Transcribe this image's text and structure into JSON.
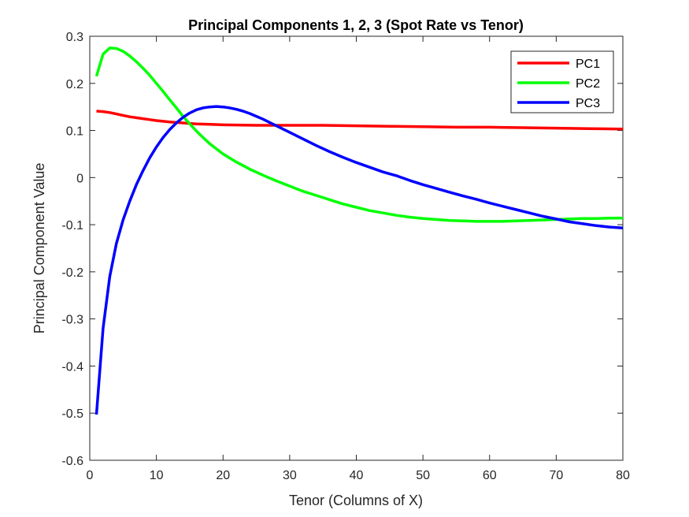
{
  "chart_data": {
    "type": "line",
    "title": "Principal Components 1, 2, 3 (Spot Rate vs Tenor)",
    "xlabel": "Tenor (Columns of X)",
    "ylabel": "Principal Component Value",
    "xlim": [
      0,
      80
    ],
    "ylim": [
      -0.6,
      0.3
    ],
    "xticks": [
      0,
      10,
      20,
      30,
      40,
      50,
      60,
      70,
      80
    ],
    "yticks": [
      0.3,
      0.2,
      0.1,
      0,
      -0.1,
      -0.2,
      -0.3,
      -0.4,
      -0.5,
      -0.6
    ],
    "xtick_labels": [
      "0",
      "10",
      "20",
      "30",
      "40",
      "50",
      "60",
      "70",
      "80"
    ],
    "ytick_labels": [
      "0.3",
      "0.2",
      "0.1",
      "0",
      "-0.1",
      "-0.2",
      "-0.3",
      "-0.4",
      "-0.5",
      "-0.6"
    ],
    "grid": false,
    "legend_position": "top-right",
    "series": [
      {
        "name": "PC1",
        "color": "#ff0000",
        "points": [
          [
            1,
            0.141
          ],
          [
            2,
            0.14
          ],
          [
            3,
            0.138
          ],
          [
            4,
            0.135
          ],
          [
            5,
            0.132
          ],
          [
            6,
            0.129
          ],
          [
            7,
            0.127
          ],
          [
            8,
            0.125
          ],
          [
            9,
            0.123
          ],
          [
            10,
            0.121
          ],
          [
            12,
            0.118
          ],
          [
            14,
            0.116
          ],
          [
            16,
            0.114
          ],
          [
            18,
            0.113
          ],
          [
            20,
            0.112
          ],
          [
            25,
            0.111
          ],
          [
            30,
            0.111
          ],
          [
            35,
            0.111
          ],
          [
            40,
            0.11
          ],
          [
            45,
            0.109
          ],
          [
            50,
            0.108
          ],
          [
            55,
            0.107
          ],
          [
            60,
            0.107
          ],
          [
            65,
            0.106
          ],
          [
            70,
            0.105
          ],
          [
            75,
            0.104
          ],
          [
            80,
            0.103
          ]
        ]
      },
      {
        "name": "PC2",
        "color": "#00ff00",
        "points": [
          [
            1,
            0.215
          ],
          [
            2,
            0.262
          ],
          [
            3,
            0.275
          ],
          [
            4,
            0.274
          ],
          [
            5,
            0.268
          ],
          [
            6,
            0.258
          ],
          [
            7,
            0.246
          ],
          [
            8,
            0.232
          ],
          [
            9,
            0.217
          ],
          [
            10,
            0.2
          ],
          [
            11,
            0.183
          ],
          [
            12,
            0.165
          ],
          [
            13,
            0.148
          ],
          [
            14,
            0.13
          ],
          [
            15,
            0.114
          ],
          [
            16,
            0.099
          ],
          [
            17,
            0.085
          ],
          [
            18,
            0.072
          ],
          [
            19,
            0.061
          ],
          [
            20,
            0.05
          ],
          [
            22,
            0.033
          ],
          [
            24,
            0.018
          ],
          [
            26,
            0.005
          ],
          [
            28,
            -0.007
          ],
          [
            30,
            -0.018
          ],
          [
            32,
            -0.029
          ],
          [
            34,
            -0.038
          ],
          [
            36,
            -0.047
          ],
          [
            38,
            -0.056
          ],
          [
            40,
            -0.063
          ],
          [
            42,
            -0.07
          ],
          [
            44,
            -0.075
          ],
          [
            46,
            -0.08
          ],
          [
            48,
            -0.084
          ],
          [
            50,
            -0.087
          ],
          [
            52,
            -0.089
          ],
          [
            54,
            -0.091
          ],
          [
            56,
            -0.092
          ],
          [
            58,
            -0.093
          ],
          [
            60,
            -0.093
          ],
          [
            62,
            -0.093
          ],
          [
            64,
            -0.092
          ],
          [
            66,
            -0.091
          ],
          [
            68,
            -0.09
          ],
          [
            70,
            -0.089
          ],
          [
            72,
            -0.088
          ],
          [
            74,
            -0.087
          ],
          [
            76,
            -0.087
          ],
          [
            78,
            -0.086
          ],
          [
            80,
            -0.086
          ]
        ]
      },
      {
        "name": "PC3",
        "color": "#0000ff",
        "points": [
          [
            1,
            -0.503
          ],
          [
            2,
            -0.32
          ],
          [
            3,
            -0.21
          ],
          [
            4,
            -0.14
          ],
          [
            5,
            -0.09
          ],
          [
            6,
            -0.05
          ],
          [
            7,
            -0.015
          ],
          [
            8,
            0.015
          ],
          [
            9,
            0.042
          ],
          [
            10,
            0.065
          ],
          [
            11,
            0.085
          ],
          [
            12,
            0.102
          ],
          [
            13,
            0.116
          ],
          [
            14,
            0.128
          ],
          [
            15,
            0.137
          ],
          [
            16,
            0.144
          ],
          [
            17,
            0.148
          ],
          [
            18,
            0.15
          ],
          [
            19,
            0.151
          ],
          [
            20,
            0.15
          ],
          [
            21,
            0.148
          ],
          [
            22,
            0.145
          ],
          [
            23,
            0.141
          ],
          [
            24,
            0.136
          ],
          [
            25,
            0.13
          ],
          [
            26,
            0.124
          ],
          [
            27,
            0.117
          ],
          [
            28,
            0.11
          ],
          [
            30,
            0.096
          ],
          [
            32,
            0.082
          ],
          [
            34,
            0.068
          ],
          [
            36,
            0.055
          ],
          [
            38,
            0.043
          ],
          [
            40,
            0.032
          ],
          [
            42,
            0.022
          ],
          [
            44,
            0.012
          ],
          [
            46,
            0.004
          ],
          [
            48,
            -0.006
          ],
          [
            50,
            -0.015
          ],
          [
            52,
            -0.023
          ],
          [
            54,
            -0.031
          ],
          [
            56,
            -0.039
          ],
          [
            58,
            -0.046
          ],
          [
            60,
            -0.054
          ],
          [
            62,
            -0.061
          ],
          [
            64,
            -0.068
          ],
          [
            66,
            -0.075
          ],
          [
            68,
            -0.082
          ],
          [
            70,
            -0.088
          ],
          [
            72,
            -0.094
          ],
          [
            74,
            -0.098
          ],
          [
            76,
            -0.102
          ],
          [
            78,
            -0.105
          ],
          [
            80,
            -0.107
          ]
        ]
      }
    ]
  }
}
